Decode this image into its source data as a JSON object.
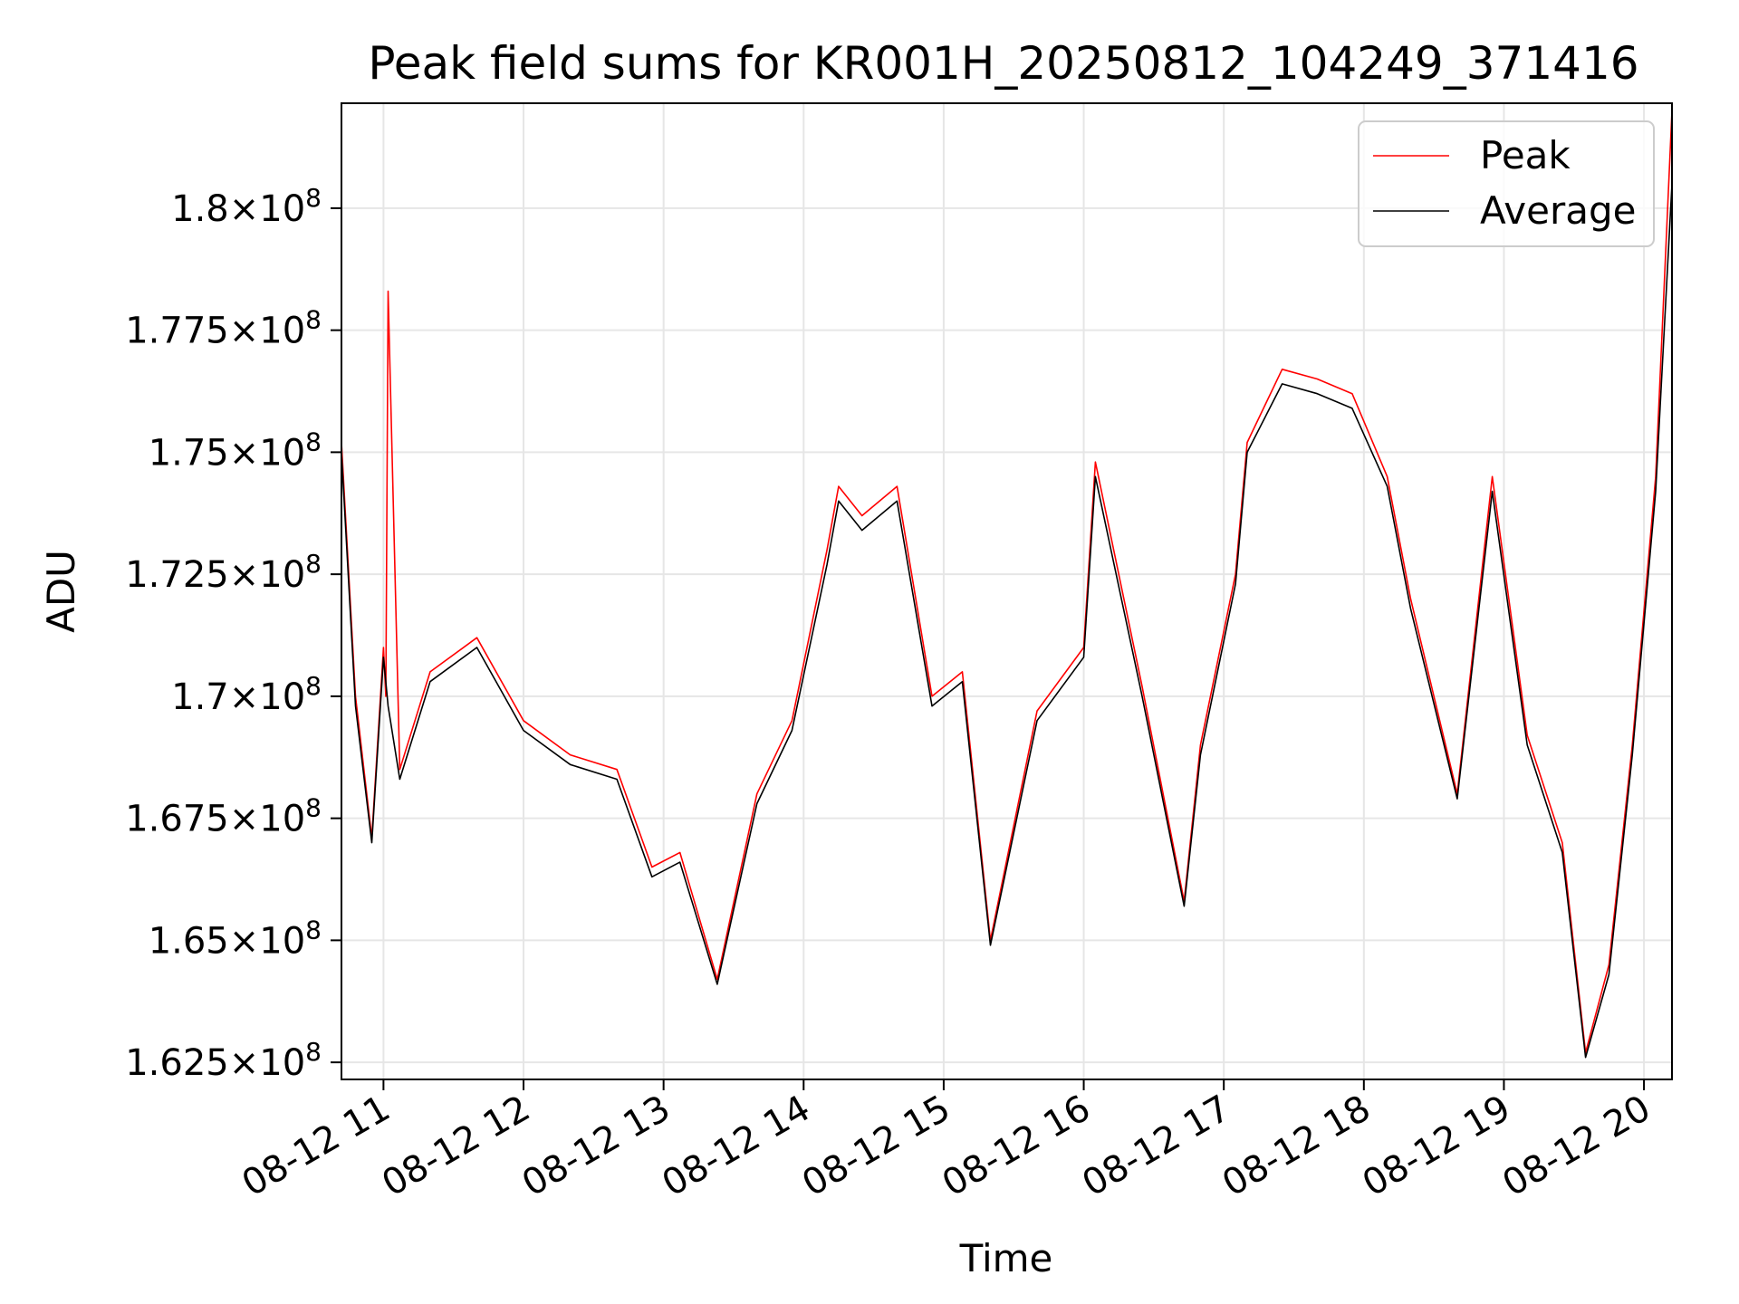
{
  "chart_data": {
    "type": "line",
    "title": "Peak field sums for KR001H_20250812_104249_371416",
    "xlabel": "Time",
    "ylabel": "ADU",
    "x_range": [
      "2025-08-12 10:42",
      "2025-08-12 20:12"
    ],
    "ylim": [
      162150000,
      182150000
    ],
    "grid": true,
    "legend_position": "top-right",
    "x_ticks": [
      "08-12 11",
      "08-12 12",
      "08-12 13",
      "08-12 14",
      "08-12 15",
      "08-12 16",
      "08-12 17",
      "08-12 18",
      "08-12 19",
      "08-12 20"
    ],
    "y_ticks": [
      {
        "value": 162500000,
        "mantissa": "1.625",
        "exponent": "8"
      },
      {
        "value": 165000000,
        "mantissa": "1.65",
        "exponent": "8"
      },
      {
        "value": 167500000,
        "mantissa": "1.675",
        "exponent": "8"
      },
      {
        "value": 170000000,
        "mantissa": "1.7",
        "exponent": "8"
      },
      {
        "value": 172500000,
        "mantissa": "1.725",
        "exponent": "8"
      },
      {
        "value": 175000000,
        "mantissa": "1.75",
        "exponent": "8"
      },
      {
        "value": 177500000,
        "mantissa": "1.775",
        "exponent": "8"
      },
      {
        "value": 180000000,
        "mantissa": "1.8",
        "exponent": "8"
      }
    ],
    "series": [
      {
        "name": "Peak",
        "color": "#ff0000",
        "x": [
          "2025-08-12 10:42",
          "2025-08-12 10:48",
          "2025-08-12 10:55",
          "2025-08-12 11:00",
          "2025-08-12 11:01",
          "2025-08-12 11:02",
          "2025-08-12 11:07",
          "2025-08-12 11:20",
          "2025-08-12 11:40",
          "2025-08-12 12:00",
          "2025-08-12 12:20",
          "2025-08-12 12:40",
          "2025-08-12 12:55",
          "2025-08-12 13:07",
          "2025-08-12 13:23",
          "2025-08-12 13:40",
          "2025-08-12 13:55",
          "2025-08-12 14:10",
          "2025-08-12 14:15",
          "2025-08-12 14:25",
          "2025-08-12 14:40",
          "2025-08-12 14:55",
          "2025-08-12 15:08",
          "2025-08-12 15:20",
          "2025-08-12 15:40",
          "2025-08-12 16:00",
          "2025-08-12 16:05",
          "2025-08-12 16:25",
          "2025-08-12 16:43",
          "2025-08-12 16:50",
          "2025-08-12 17:05",
          "2025-08-12 17:10",
          "2025-08-12 17:25",
          "2025-08-12 17:40",
          "2025-08-12 17:55",
          "2025-08-12 18:10",
          "2025-08-12 18:20",
          "2025-08-12 18:40",
          "2025-08-12 18:55",
          "2025-08-12 19:10",
          "2025-08-12 19:25",
          "2025-08-12 19:35",
          "2025-08-12 19:45",
          "2025-08-12 19:55",
          "2025-08-12 20:05",
          "2025-08-12 20:12"
        ],
        "values": [
          175200000,
          170000000,
          167100000,
          171000000,
          170000000,
          178300000,
          168500000,
          170500000,
          171200000,
          169500000,
          168800000,
          168500000,
          166500000,
          166800000,
          164200000,
          168000000,
          169500000,
          173000000,
          174300000,
          173700000,
          174300000,
          170000000,
          170500000,
          165000000,
          169700000,
          171000000,
          174800000,
          170200000,
          165800000,
          169000000,
          172500000,
          175200000,
          176700000,
          176500000,
          176200000,
          174500000,
          172000000,
          168000000,
          174500000,
          169200000,
          167000000,
          162700000,
          164500000,
          169000000,
          174500000,
          182000000
        ]
      },
      {
        "name": "Average",
        "color": "#000000",
        "x": [
          "2025-08-12 10:42",
          "2025-08-12 10:48",
          "2025-08-12 10:55",
          "2025-08-12 11:00",
          "2025-08-12 11:02",
          "2025-08-12 11:07",
          "2025-08-12 11:20",
          "2025-08-12 11:40",
          "2025-08-12 12:00",
          "2025-08-12 12:20",
          "2025-08-12 12:40",
          "2025-08-12 12:55",
          "2025-08-12 13:07",
          "2025-08-12 13:23",
          "2025-08-12 13:40",
          "2025-08-12 13:55",
          "2025-08-12 14:10",
          "2025-08-12 14:15",
          "2025-08-12 14:25",
          "2025-08-12 14:40",
          "2025-08-12 14:55",
          "2025-08-12 15:08",
          "2025-08-12 15:20",
          "2025-08-12 15:40",
          "2025-08-12 16:00",
          "2025-08-12 16:05",
          "2025-08-12 16:25",
          "2025-08-12 16:43",
          "2025-08-12 16:50",
          "2025-08-12 17:05",
          "2025-08-12 17:10",
          "2025-08-12 17:25",
          "2025-08-12 17:40",
          "2025-08-12 17:55",
          "2025-08-12 18:10",
          "2025-08-12 18:20",
          "2025-08-12 18:40",
          "2025-08-12 18:55",
          "2025-08-12 19:10",
          "2025-08-12 19:25",
          "2025-08-12 19:35",
          "2025-08-12 19:45",
          "2025-08-12 19:55",
          "2025-08-12 20:05",
          "2025-08-12 20:12"
        ],
        "values": [
          175000000,
          169800000,
          167000000,
          170800000,
          169800000,
          168300000,
          170300000,
          171000000,
          169300000,
          168600000,
          168300000,
          166300000,
          166600000,
          164100000,
          167800000,
          169300000,
          172700000,
          174000000,
          173400000,
          174000000,
          169800000,
          170300000,
          164900000,
          169500000,
          170800000,
          174500000,
          170000000,
          165700000,
          168800000,
          172300000,
          175000000,
          176400000,
          176200000,
          175900000,
          174300000,
          171800000,
          167900000,
          174200000,
          169000000,
          166800000,
          162600000,
          164300000,
          168800000,
          174200000,
          180500000
        ]
      }
    ]
  }
}
